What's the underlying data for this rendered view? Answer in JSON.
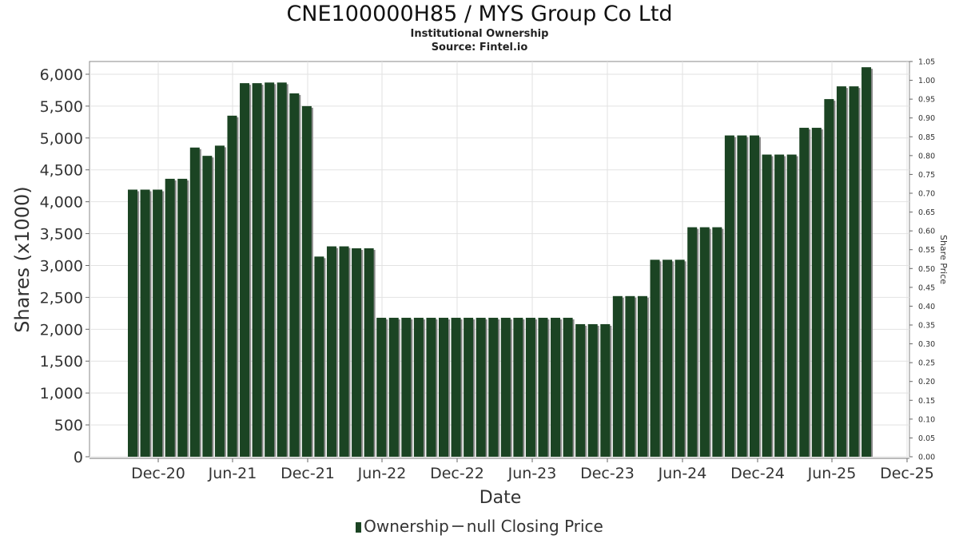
{
  "title": "CNE100000H85 / MYS Group Co Ltd",
  "subtitle1": "Institutional Ownership",
  "subtitle2": "Source: Fintel.io",
  "legend": {
    "ownership": "Ownership",
    "price": "null Closing Price"
  },
  "colors": {
    "bar": "#1b4423",
    "bar_shadow": "#8a8a8a",
    "grid": "#e2e2e2",
    "frame": "#888888"
  },
  "chart_data": {
    "type": "bar",
    "title": "CNE100000H85 / MYS Group Co Ltd",
    "subtitle": "Institutional Ownership",
    "xlabel": "Date",
    "ylabel": "Shares (x1000)",
    "y2label": "Share Price",
    "ylim": [
      0,
      6200
    ],
    "y2lim": [
      0,
      1.05
    ],
    "grid": true,
    "legend_position": "bottom",
    "x_ticks": [
      "Dec-20",
      "Jun-21",
      "Dec-21",
      "Jun-22",
      "Dec-22",
      "Jun-23",
      "Dec-23",
      "Jun-24",
      "Dec-24",
      "Jun-25",
      "Dec-25"
    ],
    "y_ticks": [
      "0",
      "500",
      "1,000",
      "1,500",
      "2,000",
      "2,500",
      "3,000",
      "3,500",
      "4,000",
      "4,500",
      "5,000",
      "5,500",
      "6,000"
    ],
    "y2_ticks": [
      "0.00",
      "0.05",
      "0.10",
      "0.15",
      "0.20",
      "0.25",
      "0.30",
      "0.35",
      "0.40",
      "0.45",
      "0.50",
      "0.55",
      "0.60",
      "0.65",
      "0.70",
      "0.75",
      "0.80",
      "0.85",
      "0.90",
      "0.95",
      "1.00",
      "1.05"
    ],
    "series": [
      {
        "name": "Ownership",
        "values": [
          4190,
          4190,
          4190,
          4360,
          4360,
          4850,
          4720,
          4880,
          5350,
          5860,
          5860,
          5870,
          5870,
          5700,
          5500,
          3140,
          3300,
          3300,
          3270,
          3270,
          2180,
          2180,
          2180,
          2180,
          2180,
          2180,
          2180,
          2180,
          2180,
          2180,
          2180,
          2180,
          2180,
          2180,
          2180,
          2180,
          2080,
          2080,
          2080,
          2520,
          2520,
          2520,
          3090,
          3090,
          3090,
          3600,
          3600,
          3600,
          5040,
          5040,
          5040,
          4740,
          4740,
          4740,
          5160,
          5160,
          5610,
          5810,
          5810,
          6110
        ]
      }
    ]
  }
}
